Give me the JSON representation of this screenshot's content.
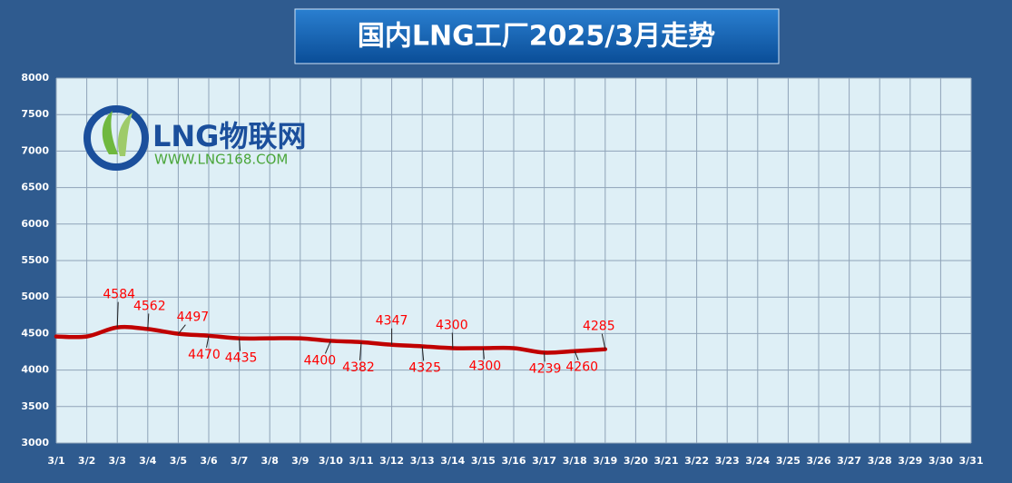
{
  "chart_data": {
    "type": "line",
    "title": "国内LNG工厂2025/3月走势",
    "logo": {
      "name": "LNG物联网",
      "url": "WWW.LNG168.COM"
    },
    "categories": [
      "3/1",
      "3/2",
      "3/3",
      "3/4",
      "3/5",
      "3/6",
      "3/7",
      "3/8",
      "3/9",
      "3/10",
      "3/11",
      "3/12",
      "3/13",
      "3/14",
      "3/15",
      "3/16",
      "3/17",
      "3/18",
      "3/19",
      "3/20",
      "3/21",
      "3/22",
      "3/23",
      "3/24",
      "3/25",
      "3/26",
      "3/27",
      "3/28",
      "3/29",
      "3/30",
      "3/31"
    ],
    "series": [
      {
        "color": "#c00000",
        "values": [
          4460,
          4460,
          4584,
          4562,
          4497,
          4470,
          4435,
          4435,
          4435,
          4400,
          4382,
          4347,
          4325,
          4300,
          4300,
          4300,
          4239,
          4260,
          4285,
          null,
          null,
          null,
          null,
          null,
          null,
          null,
          null,
          null,
          null,
          null,
          null
        ],
        "value_labels": [
          null,
          null,
          "4584",
          "4562",
          "4497",
          "4470",
          "4435",
          null,
          null,
          "4400",
          "4382",
          "4347",
          "4325",
          "4300",
          "4300",
          null,
          "4239",
          "4260",
          "4285",
          null,
          null,
          null,
          null,
          null,
          null,
          null,
          null,
          null,
          null,
          null,
          null
        ]
      }
    ],
    "ylim": [
      3000,
      8000
    ],
    "yticks": [
      3000,
      3500,
      4000,
      4500,
      5000,
      5500,
      6000,
      6500,
      7000,
      7500,
      8000
    ],
    "grid": true
  }
}
